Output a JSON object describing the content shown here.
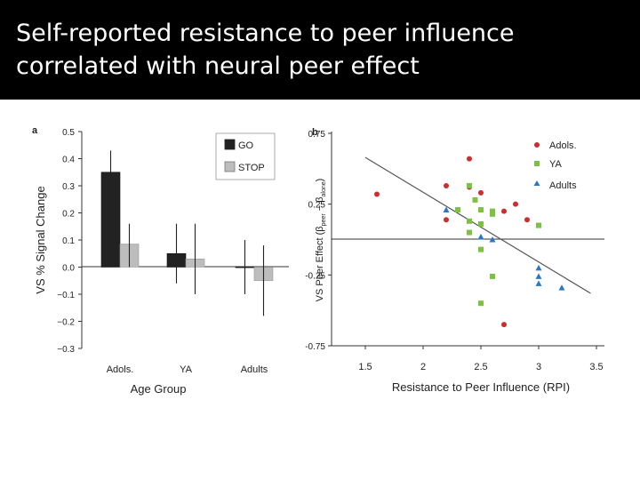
{
  "slide": {
    "title_lines": [
      "Self-reported resistance to peer influence",
      "correlated with neural peer effect"
    ],
    "title_bg": "#000000",
    "title_color": "#ffffff"
  },
  "chart_data": [
    {
      "type": "bar",
      "panel_label": "a",
      "categories": [
        "Adols.",
        "YA",
        "Adults"
      ],
      "series": [
        {
          "name": "GO",
          "color": "#222222",
          "values": [
            0.35,
            0.05,
            0.0
          ],
          "err_low": [
            0.28,
            -0.06,
            -0.1
          ],
          "err_high": [
            0.43,
            0.16,
            0.1
          ]
        },
        {
          "name": "STOP",
          "color": "#bdbdbd",
          "values": [
            0.085,
            0.03,
            -0.05
          ],
          "err_low": [
            0.0,
            -0.1,
            -0.18
          ],
          "err_high": [
            0.16,
            0.16,
            0.08
          ]
        }
      ],
      "xlabel": "Age Group",
      "ylabel": "VS % Signal Change",
      "ylim": [
        -0.3,
        0.5
      ],
      "yticks": [
        0.5,
        0.4,
        0.3,
        0.2,
        0.1,
        0.0,
        -0.1,
        -0.2,
        -0.3
      ],
      "ytick_labels": [
        "0.5",
        "0.4",
        "0.3",
        "0.2",
        "0.1",
        "0.0",
        "−0.1",
        "−0.2",
        "−0.3"
      ],
      "legend_position": "top-right"
    },
    {
      "type": "scatter",
      "panel_label": "b",
      "series": [
        {
          "name": "Adols.",
          "marker": "circle",
          "color": "#cc2e2e",
          "points": [
            [
              1.6,
              0.32
            ],
            [
              2.2,
              0.38
            ],
            [
              2.2,
              0.14
            ],
            [
              2.4,
              0.57
            ],
            [
              2.4,
              0.37
            ],
            [
              2.5,
              0.33
            ],
            [
              2.7,
              0.2
            ],
            [
              2.8,
              0.25
            ],
            [
              2.9,
              0.14
            ],
            [
              2.7,
              -0.6
            ]
          ]
        },
        {
          "name": "YA",
          "marker": "square",
          "color": "#7cc242",
          "points": [
            [
              2.3,
              0.21
            ],
            [
              2.4,
              0.38
            ],
            [
              2.4,
              0.13
            ],
            [
              2.4,
              0.05
            ],
            [
              2.45,
              0.28
            ],
            [
              2.5,
              0.21
            ],
            [
              2.5,
              0.11
            ],
            [
              2.5,
              -0.07
            ],
            [
              2.6,
              0.18
            ],
            [
              2.6,
              0.2
            ],
            [
              3.0,
              0.1
            ],
            [
              2.6,
              -0.26
            ],
            [
              2.5,
              -0.45
            ]
          ]
        },
        {
          "name": "Adults",
          "marker": "triangle",
          "color": "#2b78c2",
          "points": [
            [
              2.2,
              0.21
            ],
            [
              2.5,
              0.02
            ],
            [
              2.6,
              0.0
            ],
            [
              3.0,
              -0.2
            ],
            [
              3.0,
              -0.26
            ],
            [
              3.0,
              -0.31
            ],
            [
              3.2,
              -0.34
            ]
          ]
        }
      ],
      "regression_line": {
        "x": [
          1.5,
          3.45
        ],
        "y": [
          0.58,
          -0.38
        ]
      },
      "xlabel": "Resistance to Peer Influence (RPI)",
      "ylabel_prefix": "VS Peer Effect (",
      "ylabel_b1": "β",
      "ylabel_sub1": "peer",
      "ylabel_mid": " − ",
      "ylabel_b2": "β",
      "ylabel_sub2": "alone",
      "ylabel_suffix": ")",
      "xlim": [
        1.5,
        3.5
      ],
      "ylim": [
        -0.75,
        0.75
      ],
      "xticks": [
        1.5,
        2.0,
        2.5,
        3.0,
        3.5
      ],
      "xtick_labels": [
        "1.5",
        "2",
        "2.5",
        "3",
        "3.5"
      ],
      "yticks": [
        0.75,
        0.25,
        -0.25,
        -0.75
      ],
      "ytick_labels": [
        "0.75",
        "0.25",
        "-0.25",
        "-0.75"
      ],
      "legend_position": "top-right"
    }
  ]
}
